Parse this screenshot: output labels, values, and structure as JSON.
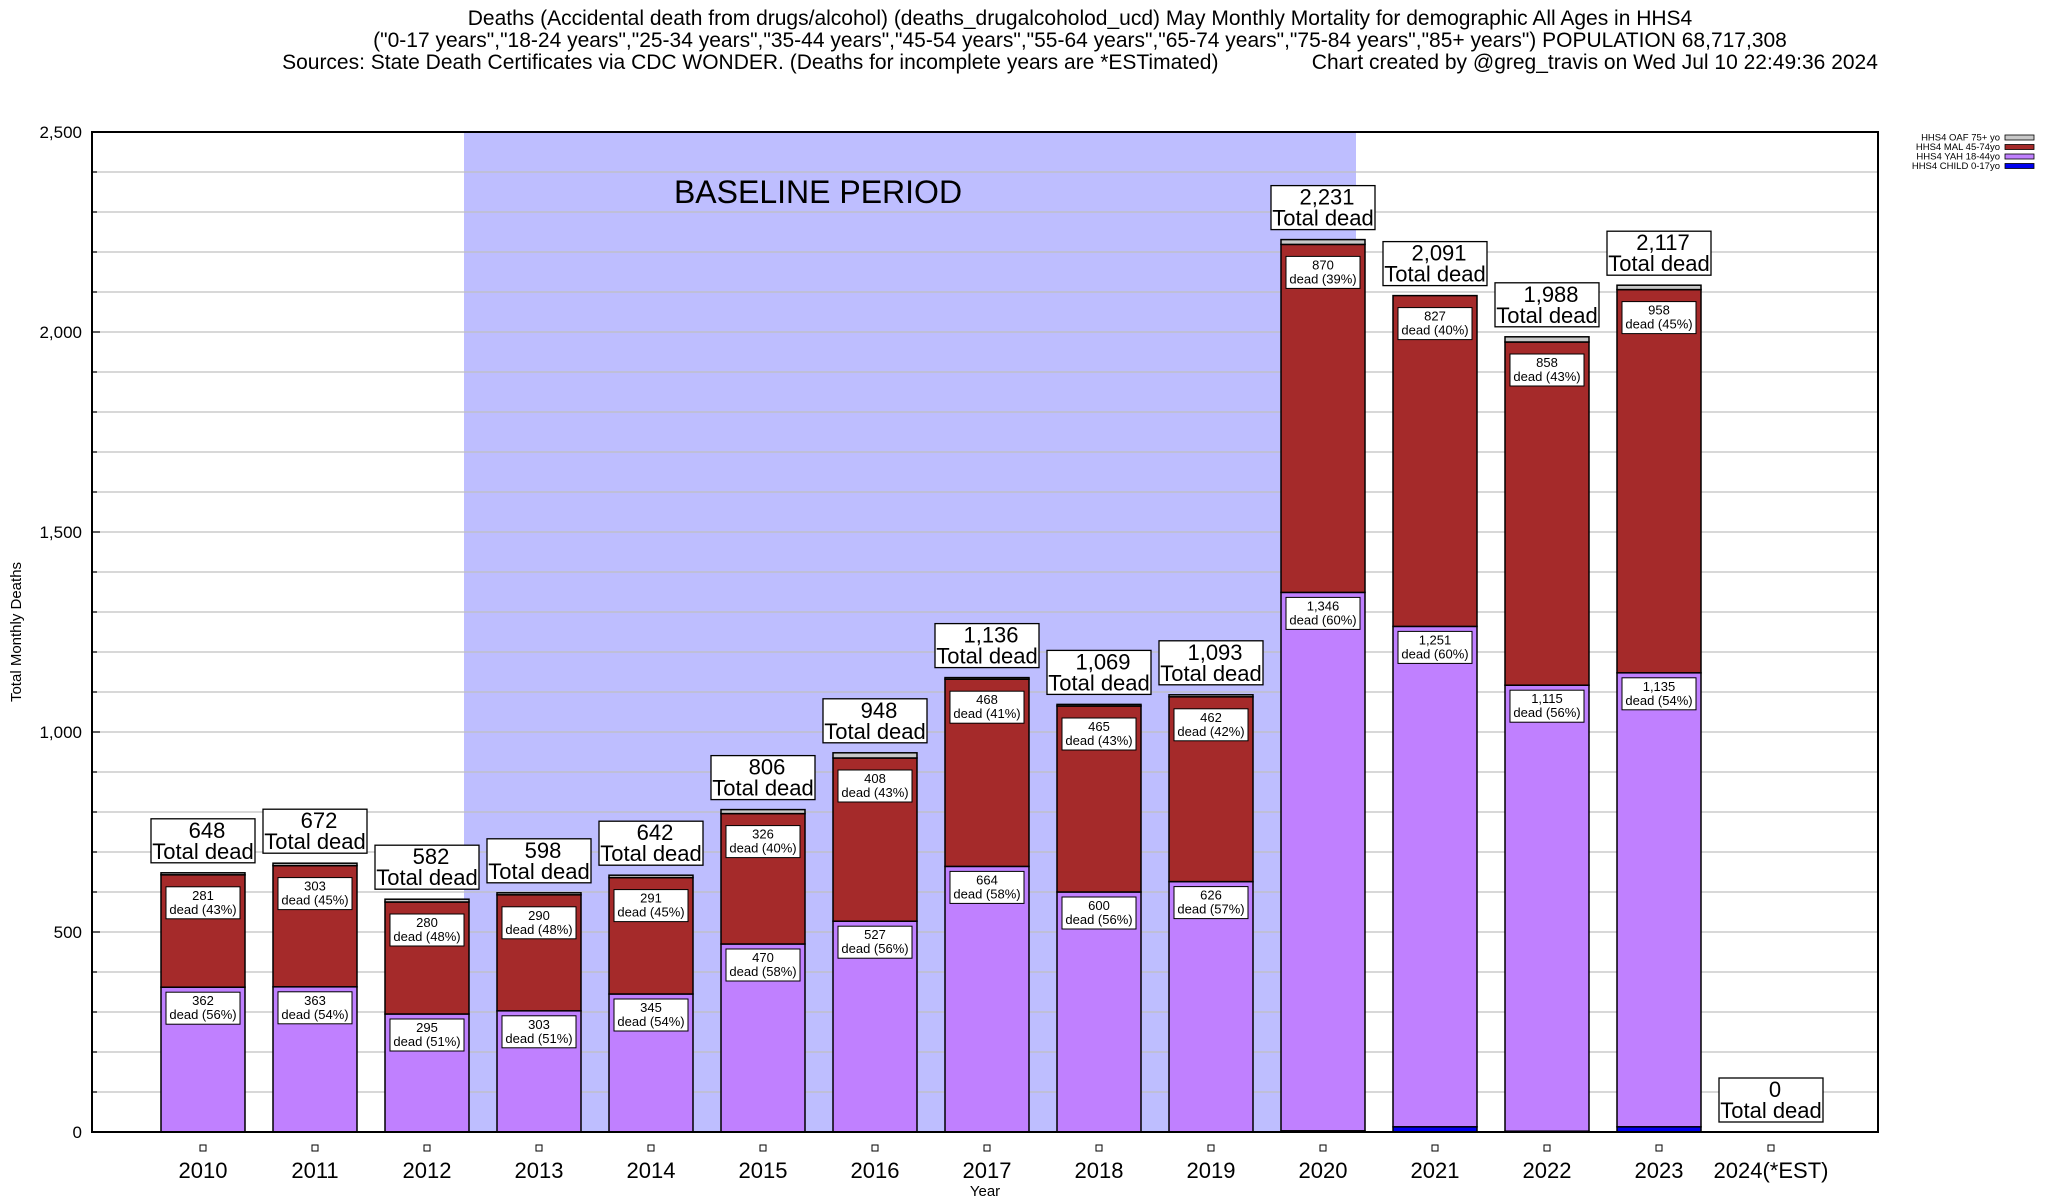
{
  "chart_data": {
    "type": "bar",
    "stacked": true,
    "title_lines": [
      "Deaths (Accidental death from drugs/alcohol) (deaths_drugalcoholod_ucd) May Monthly Mortality for demographic All Ages in HHS4",
      "(\"0-17 years\",\"18-24 years\",\"25-34 years\",\"35-44 years\",\"45-54 years\",\"55-64 years\",\"65-74 years\",\"75-84 years\",\"85+ years\") POPULATION 68,717,308",
      "Sources: State Death Certificates via CDC WONDER. (Deaths for incomplete years are *ESTimated)                Chart created by @greg_travis on Wed Jul 10 22:49:36 2024"
    ],
    "xlabel": "Year",
    "ylabel": "Total Monthly Deaths",
    "ylim": [
      0,
      2500
    ],
    "y_ticks": [
      0,
      500,
      1000,
      1500,
      2000,
      2500
    ],
    "y_tick_labels": [
      "0",
      "500",
      "1,000",
      "1,500",
      "2,000",
      "2,500"
    ],
    "minor_grid_step": 100,
    "grid": true,
    "legend_position": "top-right",
    "categories": [
      "2010",
      "2011",
      "2012",
      "2013",
      "2014",
      "2015",
      "2016",
      "2017",
      "2018",
      "2019",
      "2020",
      "2021",
      "2022",
      "2023",
      "2024(*EST)"
    ],
    "series": [
      {
        "name": "HHS4 CHILD 0-17yo",
        "color": "#0000ee",
        "values": [
          0,
          0,
          0,
          0,
          0,
          0,
          0,
          0,
          0,
          0,
          3,
          13,
          2,
          13,
          0
        ]
      },
      {
        "name": "HHS4 YAH 18-44yo",
        "color": "#c080ff",
        "values": [
          362,
          363,
          295,
          303,
          345,
          470,
          527,
          664,
          600,
          626,
          1346,
          1251,
          1115,
          1135,
          0
        ]
      },
      {
        "name": "HHS4 MAL 45-74yo",
        "color": "#a52a2a",
        "values": [
          281,
          303,
          280,
          290,
          291,
          326,
          408,
          468,
          465,
          462,
          870,
          827,
          858,
          958,
          0
        ]
      },
      {
        "name": "HHS4 OAF 75+ yo",
        "color": "#c8c8c8",
        "values": [
          5,
          6,
          7,
          5,
          6,
          10,
          13,
          4,
          4,
          5,
          12,
          0,
          13,
          11,
          0
        ]
      }
    ],
    "totals": [
      648,
      672,
      582,
      598,
      642,
      806,
      948,
      1136,
      1069,
      1093,
      2231,
      2091,
      1988,
      2117,
      0
    ],
    "total_labels": [
      "648",
      "672",
      "582",
      "598",
      "642",
      "806",
      "948",
      "1,136",
      "1,069",
      "1,093",
      "2,231",
      "2,091",
      "1,988",
      "2,117",
      "0"
    ],
    "total_suffix": "Total dead",
    "yah_labels": [
      {
        "value": "362",
        "pct": "dead (56%)"
      },
      {
        "value": "363",
        "pct": "dead (54%)"
      },
      {
        "value": "295",
        "pct": "dead (51%)"
      },
      {
        "value": "303",
        "pct": "dead (51%)"
      },
      {
        "value": "345",
        "pct": "dead (54%)"
      },
      {
        "value": "470",
        "pct": "dead (58%)"
      },
      {
        "value": "527",
        "pct": "dead (56%)"
      },
      {
        "value": "664",
        "pct": "dead (58%)"
      },
      {
        "value": "600",
        "pct": "dead (56%)"
      },
      {
        "value": "626",
        "pct": "dead (57%)"
      },
      {
        "value": "1,346",
        "pct": "dead (60%)"
      },
      {
        "value": "1,251",
        "pct": "dead (60%)"
      },
      {
        "value": "1,115",
        "pct": "dead (56%)"
      },
      {
        "value": "1,135",
        "pct": "dead (54%)"
      },
      null
    ],
    "mal_labels": [
      {
        "value": "281",
        "pct": "dead (43%)"
      },
      {
        "value": "303",
        "pct": "dead (45%)"
      },
      {
        "value": "280",
        "pct": "dead (48%)"
      },
      {
        "value": "290",
        "pct": "dead (48%)"
      },
      {
        "value": "291",
        "pct": "dead (45%)"
      },
      {
        "value": "326",
        "pct": "dead (40%)"
      },
      {
        "value": "408",
        "pct": "dead (43%)"
      },
      {
        "value": "468",
        "pct": "dead (41%)"
      },
      {
        "value": "465",
        "pct": "dead (43%)"
      },
      {
        "value": "462",
        "pct": "dead (42%)"
      },
      {
        "value": "870",
        "pct": "dead (39%)"
      },
      {
        "value": "827",
        "pct": "dead (40%)"
      },
      {
        "value": "858",
        "pct": "dead (43%)"
      },
      {
        "value": "958",
        "pct": "dead (45%)"
      },
      null
    ],
    "annotations": [
      {
        "text": "BASELINE PERIOD",
        "span_categories": [
          "2012",
          "2019"
        ],
        "fill": "#bebeff"
      }
    ]
  }
}
